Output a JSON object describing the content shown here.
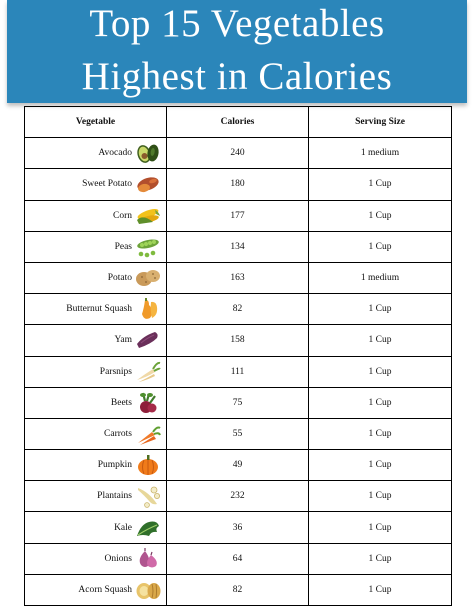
{
  "title": {
    "line1": "Top 15 Vegetables",
    "line2": "Highest in Calories"
  },
  "table": {
    "headers": [
      "Vegetable",
      "Calories",
      "Serving Size"
    ],
    "rows": [
      {
        "vegetable": "Avocado",
        "calories": "240",
        "serving": "1 medium",
        "icon": "avocado-icon"
      },
      {
        "vegetable": "Sweet Potato",
        "calories": "180",
        "serving": "1 Cup",
        "icon": "sweet-potato-icon"
      },
      {
        "vegetable": "Corn",
        "calories": "177",
        "serving": "1 Cup",
        "icon": "corn-icon"
      },
      {
        "vegetable": "Peas",
        "calories": "134",
        "serving": "1 Cup",
        "icon": "peas-icon"
      },
      {
        "vegetable": "Potato",
        "calories": "163",
        "serving": "1 medium",
        "icon": "potato-icon"
      },
      {
        "vegetable": "Butternut Squash",
        "calories": "82",
        "serving": "1 Cup",
        "icon": "butternut-squash-icon"
      },
      {
        "vegetable": "Yam",
        "calories": "158",
        "serving": "1 Cup",
        "icon": "yam-icon"
      },
      {
        "vegetable": "Parsnips",
        "calories": "111",
        "serving": "1 Cup",
        "icon": "parsnip-icon"
      },
      {
        "vegetable": "Beets",
        "calories": "75",
        "serving": "1 Cup",
        "icon": "beet-icon"
      },
      {
        "vegetable": "Carrots",
        "calories": "55",
        "serving": "1 Cup",
        "icon": "carrot-icon"
      },
      {
        "vegetable": "Pumpkin",
        "calories": "49",
        "serving": "1 Cup",
        "icon": "pumpkin-icon"
      },
      {
        "vegetable": "Plantains",
        "calories": "232",
        "serving": "1 Cup",
        "icon": "plantain-icon"
      },
      {
        "vegetable": "Kale",
        "calories": "36",
        "serving": "1 Cup",
        "icon": "kale-icon"
      },
      {
        "vegetable": "Onions",
        "calories": "64",
        "serving": "1 Cup",
        "icon": "onion-icon"
      },
      {
        "vegetable": "Acorn Squash",
        "calories": "82",
        "serving": "1 Cup",
        "icon": "acorn-squash-icon"
      }
    ]
  },
  "colors": {
    "banner": "#2b86ba",
    "banner_text": "#ffffff",
    "grid": "#000000"
  }
}
